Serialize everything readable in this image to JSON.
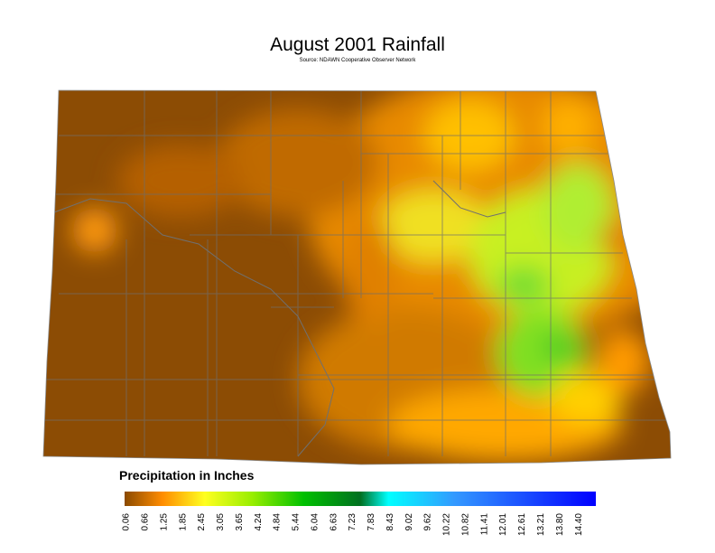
{
  "title": "August 2001 Rainfall",
  "source": "Source: NDAWN Cooperative Observer Network",
  "legend": {
    "title": "Precipitation in Inches",
    "ticks": [
      "0.06",
      "0.66",
      "1.25",
      "1.85",
      "2.45",
      "3.05",
      "3.65",
      "4.24",
      "4.84",
      "5.44",
      "6.04",
      "6.63",
      "7.23",
      "7.83",
      "8.43",
      "9.02",
      "9.62",
      "10.22",
      "10.82",
      "11.41",
      "12.01",
      "12.61",
      "13.21",
      "13.80",
      "14.40"
    ]
  }
}
